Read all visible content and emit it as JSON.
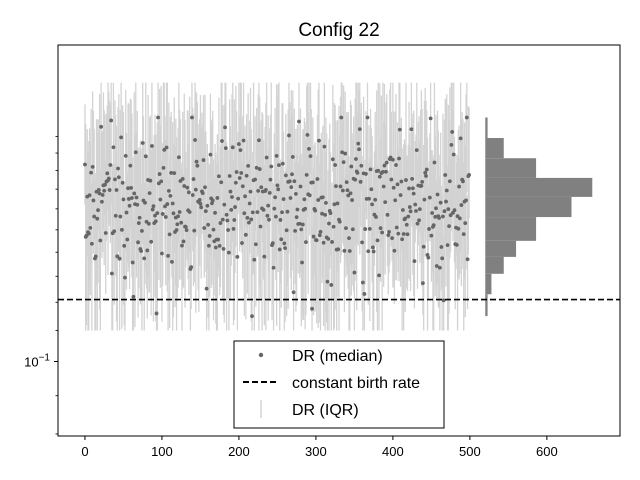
{
  "chart_data": {
    "type": "scatter",
    "title": "Config 22",
    "xlabel": "",
    "ylabel": "",
    "xlim": [
      -35,
      695
    ],
    "ylim": [
      0.0795,
      0.265
    ],
    "yscale": "log",
    "xticks": [
      0,
      100,
      200,
      300,
      400,
      500,
      600
    ],
    "yticks": [
      {
        "value": 0.1,
        "base": "10",
        "exponent": "−1"
      }
    ],
    "grid": false,
    "legend_position": "lower-center",
    "constant_birth_rate": 0.121,
    "histogram": {
      "orientation": "horizontal",
      "x_start": 520,
      "bins": [
        {
          "range": [
            0.115,
            0.123
          ],
          "count": 3
        },
        {
          "range": [
            0.123,
            0.131
          ],
          "count": 8
        },
        {
          "range": [
            0.131,
            0.138
          ],
          "count": 24
        },
        {
          "range": [
            0.138,
            0.145
          ],
          "count": 40
        },
        {
          "range": [
            0.145,
            0.156
          ],
          "count": 66
        },
        {
          "range": [
            0.156,
            0.166
          ],
          "count": 112
        },
        {
          "range": [
            0.166,
            0.176
          ],
          "count": 139
        },
        {
          "range": [
            0.176,
            0.187
          ],
          "count": 66
        },
        {
          "range": [
            0.187,
            0.199
          ],
          "count": 24
        },
        {
          "range": [
            0.199,
            0.212
          ],
          "count": 3
        }
      ]
    },
    "series": [
      {
        "name": "DR (median)",
        "kind": "points",
        "color": "#666666",
        "n_points": 500,
        "x_range": [
          0,
          499
        ],
        "typical_y": 0.162,
        "min_y": 0.082,
        "max_y": 0.212
      },
      {
        "name": "constant birth rate",
        "kind": "hline",
        "color": "#000000",
        "style": "dashed",
        "y": 0.121
      },
      {
        "name": "DR (IQR)",
        "kind": "errorbars",
        "color": "#d3d3d3",
        "typical_low": 0.135,
        "typical_high": 0.19,
        "min_low": 0.11,
        "max_high": 0.236
      }
    ],
    "legend": [
      {
        "label": "DR (median)",
        "marker": "point"
      },
      {
        "label": "constant birth rate",
        "marker": "dashed-line"
      },
      {
        "label": "DR (IQR)",
        "marker": "vertical-line"
      }
    ]
  }
}
